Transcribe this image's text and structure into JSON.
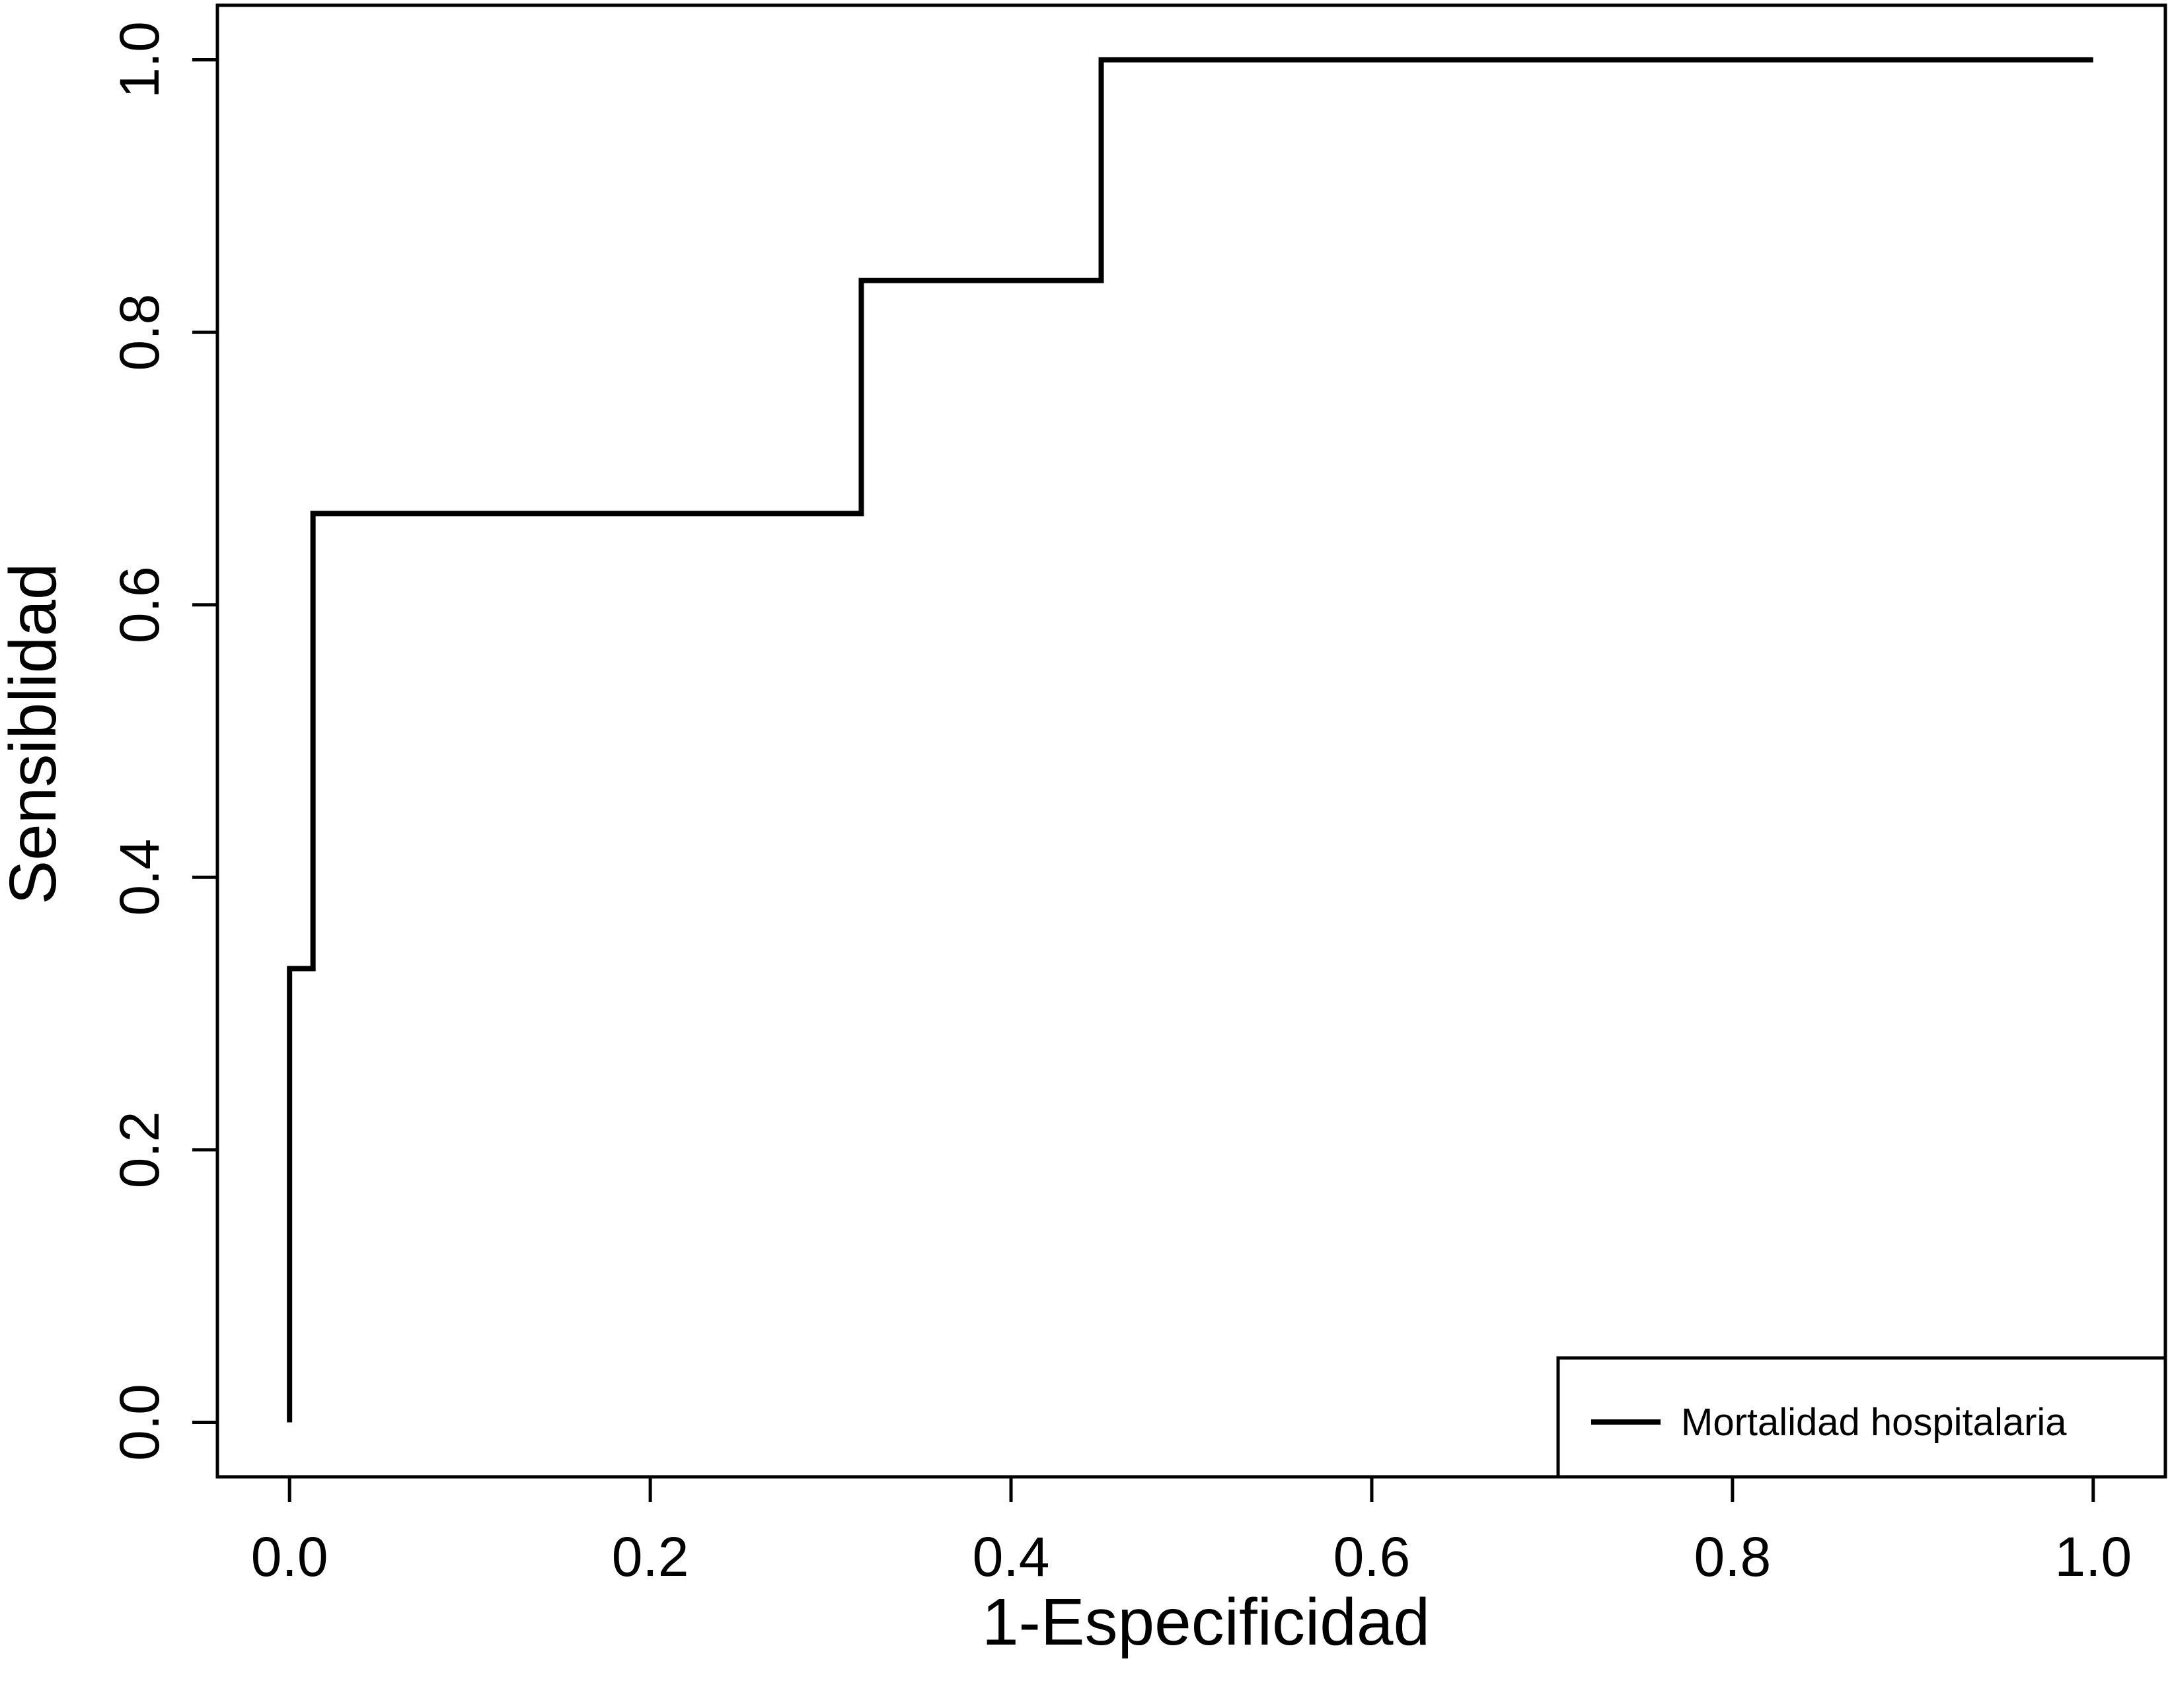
{
  "chart_data": {
    "type": "line",
    "x_label": "1-Especificidad",
    "y_label": "Sensiblidad",
    "x": [
      0,
      0,
      0.013,
      0.013,
      0.317,
      0.317,
      0.45,
      0.45,
      1.0
    ],
    "series": [
      {
        "name": "Mortalidad hospitalaria",
        "color": "#000000",
        "values": [
          0,
          0.333,
          0.333,
          0.667,
          0.667,
          0.838,
          0.838,
          1.0,
          1.0
        ]
      }
    ],
    "xlim": [
      -0.04,
      1.04
    ],
    "ylim": [
      -0.04,
      1.04
    ],
    "xticks": [
      {
        "value": 0,
        "label": "0.0"
      },
      0.2,
      0.4,
      0.6,
      0.8,
      {
        "value": 1,
        "label": "1.0"
      }
    ],
    "yticks": [
      {
        "value": 0,
        "label": "0.0"
      },
      0.2,
      0.4,
      0.6,
      0.8,
      {
        "value": 1,
        "label": "1.0"
      }
    ],
    "legend": "bottom-right",
    "grid": false
  }
}
